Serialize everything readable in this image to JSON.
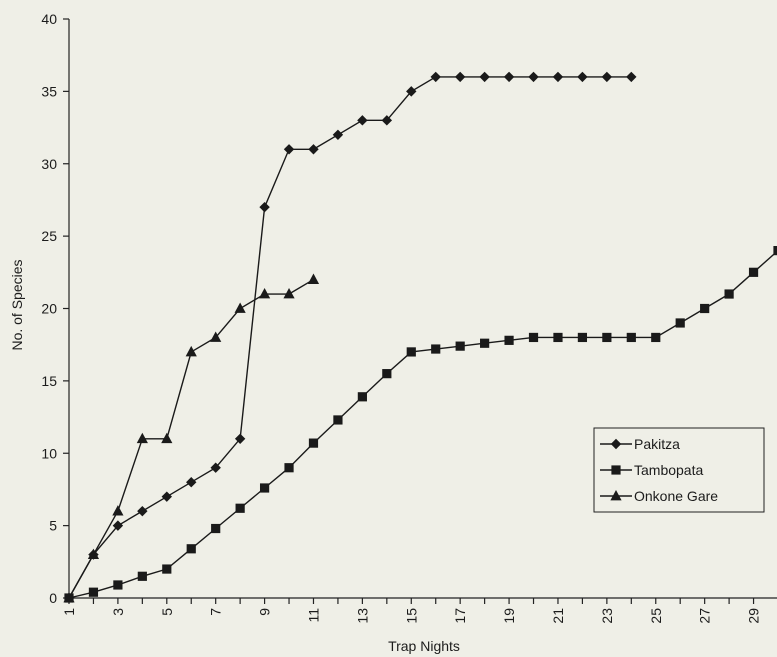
{
  "chart_data": {
    "type": "line",
    "xlabel": "Trap Nights",
    "ylabel": "No. of Species",
    "xlim": [
      1,
      30
    ],
    "ylim": [
      0,
      40
    ],
    "y_ticks": [
      "0",
      "5",
      "10",
      "15",
      "20",
      "25",
      "30",
      "35",
      "40"
    ],
    "x_ticks": [
      "1",
      "3",
      "5",
      "7",
      "9",
      "11",
      "13",
      "15",
      "17",
      "19",
      "21",
      "23",
      "25",
      "27",
      "29"
    ],
    "legend_position": "right-middle",
    "series": [
      {
        "name": "Pakitza",
        "marker": "diamond",
        "x": [
          1,
          2,
          3,
          4,
          5,
          6,
          7,
          8,
          9,
          10,
          11,
          12,
          13,
          14,
          15,
          16,
          17,
          18,
          19,
          20,
          21,
          22,
          23,
          24
        ],
        "values": [
          0,
          3,
          5,
          6,
          7,
          8,
          9,
          11,
          27,
          31,
          31,
          32,
          33,
          33,
          35,
          36,
          36,
          36,
          36,
          36,
          36,
          36,
          36,
          36
        ]
      },
      {
        "name": "Tambopata",
        "marker": "square",
        "x": [
          1,
          2,
          3,
          4,
          5,
          6,
          7,
          8,
          9,
          10,
          11,
          12,
          13,
          14,
          15,
          16,
          17,
          18,
          19,
          20,
          21,
          22,
          23,
          24,
          25,
          26,
          27,
          28,
          29,
          30
        ],
        "values": [
          0,
          0.4,
          0.9,
          1.5,
          2,
          3.4,
          4.8,
          6.2,
          7.6,
          9,
          10.7,
          12.3,
          13.9,
          15.5,
          17,
          17.2,
          17.4,
          17.6,
          17.8,
          18,
          18,
          18,
          18,
          18,
          18,
          19,
          20,
          21,
          22.5,
          24
        ]
      },
      {
        "name": "Onkone Gare",
        "marker": "triangle",
        "x": [
          1,
          2,
          3,
          4,
          5,
          6,
          7,
          8,
          9,
          10,
          11
        ],
        "values": [
          0,
          3,
          6,
          11,
          11,
          17,
          18,
          20,
          21,
          21,
          22
        ]
      }
    ]
  }
}
